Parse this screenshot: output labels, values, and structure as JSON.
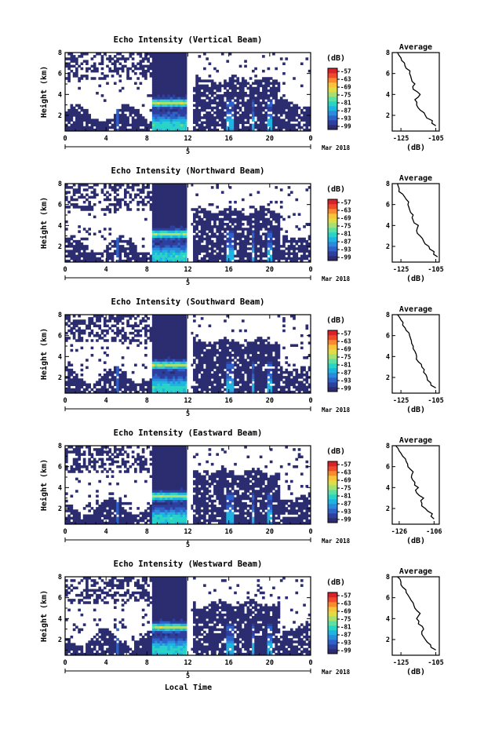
{
  "figure": {
    "xlabel": "Local Time",
    "date_label": "Mar 2018",
    "day_label": "5"
  },
  "colorbar": {
    "unit": "(dB)",
    "ticks": [
      "-57",
      "-63",
      "-69",
      "-75",
      "-81",
      "-87",
      "-93",
      "-99"
    ],
    "colors": [
      "#2b2d70",
      "#2e3f9e",
      "#2f62c8",
      "#2a8bdc",
      "#1fb3e0",
      "#2ad3c8",
      "#5ee0a0",
      "#a6e072",
      "#e0dc48",
      "#f8c23a",
      "#f88a30",
      "#ef4a2a",
      "#d9232a"
    ]
  },
  "chart_data": [
    {
      "type": "heatmap",
      "title": "Echo Intensity (Vertical Beam)",
      "ylabel": "Height (km)",
      "xlim": [
        0,
        24
      ],
      "ylim": [
        0.5,
        8
      ],
      "xticks": [
        "0",
        "4",
        "8",
        "12",
        "16",
        "20",
        "0"
      ],
      "yticks": [
        "8",
        "6",
        "4",
        "2"
      ],
      "clim": [
        -99,
        -57
      ],
      "colorbar_label": "(dB)",
      "profile": {
        "title": "Average",
        "xlabel": "(dB)",
        "xlim": [
          -130,
          -103
        ],
        "xticks": [
          "-125",
          "-105"
        ],
        "ylim": [
          0.5,
          8
        ],
        "yticks": [
          "8",
          "6",
          "4",
          "2"
        ],
        "height": [
          1.0,
          1.5,
          2.0,
          2.5,
          3.0,
          3.5,
          4.0,
          4.5,
          5.0,
          5.5,
          6.0,
          6.5,
          7.0,
          7.5,
          8.0
        ],
        "db": [
          -105,
          -107,
          -111,
          -114,
          -116,
          -117,
          -114,
          -118,
          -117,
          -119,
          -120,
          -122,
          -123,
          -125,
          -127
        ]
      }
    },
    {
      "type": "heatmap",
      "title": "Echo Intensity (Northward Beam)",
      "ylabel": "Height (km)",
      "xlim": [
        0,
        24
      ],
      "ylim": [
        0.5,
        8
      ],
      "xticks": [
        "0",
        "4",
        "8",
        "12",
        "16",
        "20",
        "0"
      ],
      "yticks": [
        "8",
        "6",
        "4",
        "2"
      ],
      "clim": [
        -99,
        -57
      ],
      "colorbar_label": "(dB)",
      "profile": {
        "title": "Average",
        "xlabel": "(dB)",
        "xlim": [
          -130,
          -103
        ],
        "xticks": [
          "-125",
          "-105"
        ],
        "ylim": [
          0.5,
          8
        ],
        "yticks": [
          "8",
          "6",
          "4",
          "2"
        ],
        "height": [
          1.0,
          1.5,
          2.0,
          2.5,
          3.0,
          3.5,
          4.0,
          4.5,
          5.0,
          5.5,
          6.0,
          6.5,
          7.0,
          7.5,
          8.0
        ],
        "db": [
          -104,
          -106,
          -109,
          -112,
          -114,
          -116,
          -115,
          -118,
          -118,
          -120,
          -121,
          -122,
          -124,
          -126,
          -127
        ]
      }
    },
    {
      "type": "heatmap",
      "title": "Echo Intensity (Southward Beam)",
      "ylabel": "Height (km)",
      "xlim": [
        0,
        24
      ],
      "ylim": [
        0.5,
        8
      ],
      "xticks": [
        "0",
        "4",
        "8",
        "12",
        "16",
        "20",
        "0"
      ],
      "yticks": [
        "8",
        "6",
        "4",
        "2"
      ],
      "clim": [
        -99,
        -57
      ],
      "colorbar_label": "(dB)",
      "profile": {
        "title": "Average",
        "xlabel": "(dB)",
        "xlim": [
          -130,
          -103
        ],
        "xticks": [
          "-125",
          "-105"
        ],
        "ylim": [
          0.5,
          8
        ],
        "yticks": [
          "8",
          "6",
          "4",
          "2"
        ],
        "height": [
          1.0,
          1.5,
          2.0,
          2.5,
          3.0,
          3.5,
          4.0,
          4.5,
          5.0,
          5.5,
          6.0,
          6.5,
          7.0,
          7.5,
          8.0
        ],
        "db": [
          -105,
          -108,
          -110,
          -112,
          -113,
          -115,
          -116,
          -117,
          -118,
          -119,
          -120,
          -122,
          -124,
          -125,
          -127
        ]
      }
    },
    {
      "type": "heatmap",
      "title": "Echo Intensity (Eastward Beam)",
      "ylabel": "Height (km)",
      "xlim": [
        0,
        24
      ],
      "ylim": [
        0.5,
        8
      ],
      "xticks": [
        "0",
        "4",
        "8",
        "12",
        "16",
        "20",
        "0"
      ],
      "yticks": [
        "8",
        "6",
        "4",
        "2"
      ],
      "clim": [
        -99,
        -57
      ],
      "colorbar_label": "(dB)",
      "profile": {
        "title": "Average",
        "xlabel": "(dB)",
        "xlim": [
          -130,
          -103
        ],
        "xticks": [
          "-126",
          "-106"
        ],
        "ylim": [
          0.5,
          8
        ],
        "yticks": [
          "8",
          "6",
          "4",
          "2"
        ],
        "height": [
          1.0,
          1.5,
          2.0,
          2.5,
          3.0,
          3.5,
          4.0,
          4.5,
          5.0,
          5.5,
          6.0,
          6.5,
          7.0,
          7.5,
          8.0
        ],
        "db": [
          -106,
          -107,
          -111,
          -113,
          -112,
          -116,
          -115,
          -117,
          -119,
          -118,
          -121,
          -122,
          -124,
          -126,
          -128
        ]
      }
    },
    {
      "type": "heatmap",
      "title": "Echo Intensity (Westward Beam)",
      "ylabel": "Height (km)",
      "xlim": [
        0,
        24
      ],
      "ylim": [
        0.5,
        8
      ],
      "xticks": [
        "0",
        "4",
        "8",
        "12",
        "16",
        "20",
        "0"
      ],
      "yticks": [
        "8",
        "6",
        "4",
        "2"
      ],
      "clim": [
        -99,
        -57
      ],
      "colorbar_label": "(dB)",
      "profile": {
        "title": "Average",
        "xlabel": "(dB)",
        "xlim": [
          -130,
          -103
        ],
        "xticks": [
          "-125",
          "-105"
        ],
        "ylim": [
          0.5,
          8
        ],
        "yticks": [
          "8",
          "6",
          "4",
          "2"
        ],
        "height": [
          1.0,
          1.5,
          2.0,
          2.5,
          3.0,
          3.5,
          4.0,
          4.5,
          5.0,
          5.5,
          6.0,
          6.5,
          7.0,
          7.5,
          8.0
        ],
        "db": [
          -105,
          -108,
          -111,
          -113,
          -112,
          -115,
          -116,
          -114,
          -117,
          -118,
          -120,
          -122,
          -124,
          -125,
          -127
        ]
      }
    }
  ]
}
